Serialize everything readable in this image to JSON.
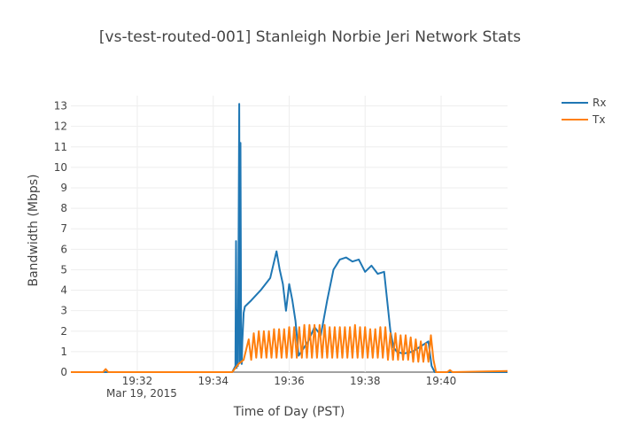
{
  "chart_data": {
    "type": "line",
    "title": "[vs-test-routed-001] Stanleigh Norbie Jeri Network Stats",
    "xlabel": "Time of Day (PST)",
    "ylabel": "Bandwidth (Mbps)",
    "date_label": "Mar 19, 2015",
    "xlim": [
      "19:30:15",
      "19:41:45"
    ],
    "ylim": [
      0,
      13.5
    ],
    "xticks": [
      "19:32",
      "19:34",
      "19:36",
      "19:38",
      "19:40"
    ],
    "yticks": [
      0,
      1,
      2,
      3,
      4,
      5,
      6,
      7,
      8,
      9,
      10,
      11,
      12,
      13
    ],
    "grid": true,
    "legend": "top-right",
    "series": [
      {
        "name": "Rx",
        "color": "#1f77b4",
        "x": [
          "19:30:15",
          "19:34:30",
          "19:34:35",
          "19:34:36",
          "19:34:37",
          "19:34:38",
          "19:34:39",
          "19:34:40",
          "19:34:41",
          "19:34:42",
          "19:34:43",
          "19:34:44",
          "19:34:45",
          "19:34:46",
          "19:34:48",
          "19:34:50",
          "19:35:00",
          "19:35:15",
          "19:35:30",
          "19:35:40",
          "19:35:45",
          "19:35:50",
          "19:35:55",
          "19:36:00",
          "19:36:05",
          "19:36:10",
          "19:36:15",
          "19:36:30",
          "19:36:40",
          "19:36:50",
          "19:37:00",
          "19:37:10",
          "19:37:20",
          "19:37:30",
          "19:37:40",
          "19:37:50",
          "19:38:00",
          "19:38:10",
          "19:38:20",
          "19:38:30",
          "19:38:40",
          "19:38:45",
          "19:38:50",
          "19:39:00",
          "19:39:15",
          "19:39:30",
          "19:39:40",
          "19:39:45",
          "19:39:50",
          "19:41:45"
        ],
        "values": [
          0,
          0,
          0.3,
          6.4,
          0.2,
          3.0,
          0.3,
          5.8,
          13.1,
          0.5,
          11.2,
          2.0,
          0.4,
          1.5,
          2.9,
          3.2,
          3.5,
          4.0,
          4.6,
          5.9,
          5.0,
          4.3,
          3.0,
          4.3,
          3.5,
          2.5,
          0.8,
          1.5,
          2.2,
          1.8,
          3.5,
          5.0,
          5.5,
          5.6,
          5.4,
          5.5,
          4.9,
          5.2,
          4.8,
          4.9,
          2.0,
          1.2,
          1.0,
          0.9,
          1.0,
          1.3,
          1.5,
          0.3,
          0,
          0
        ]
      },
      {
        "name": "Tx",
        "color": "#ff7f0e",
        "x": [
          "19:30:15",
          "19:31:06",
          "19:31:10",
          "19:31:14",
          "19:34:30",
          "19:34:40",
          "19:34:48",
          "19:34:56",
          "19:35:00",
          "19:35:04",
          "19:35:08",
          "19:35:12",
          "19:35:16",
          "19:35:20",
          "19:35:24",
          "19:35:28",
          "19:35:32",
          "19:35:36",
          "19:35:40",
          "19:35:44",
          "19:35:48",
          "19:35:52",
          "19:35:56",
          "19:36:00",
          "19:36:04",
          "19:36:08",
          "19:36:12",
          "19:36:16",
          "19:36:20",
          "19:36:24",
          "19:36:28",
          "19:36:32",
          "19:36:36",
          "19:36:40",
          "19:36:44",
          "19:36:48",
          "19:36:52",
          "19:36:56",
          "19:37:00",
          "19:37:04",
          "19:37:08",
          "19:37:12",
          "19:37:16",
          "19:37:20",
          "19:37:24",
          "19:37:28",
          "19:37:32",
          "19:37:36",
          "19:37:40",
          "19:37:44",
          "19:37:48",
          "19:37:52",
          "19:37:56",
          "19:38:00",
          "19:38:04",
          "19:38:08",
          "19:38:12",
          "19:38:16",
          "19:38:20",
          "19:38:24",
          "19:38:28",
          "19:38:32",
          "19:38:36",
          "19:38:40",
          "19:38:44",
          "19:38:48",
          "19:38:52",
          "19:38:56",
          "19:39:00",
          "19:39:04",
          "19:39:08",
          "19:39:12",
          "19:39:16",
          "19:39:20",
          "19:39:24",
          "19:39:28",
          "19:39:32",
          "19:39:36",
          "19:39:40",
          "19:39:44",
          "19:39:48",
          "19:39:52",
          "19:39:56",
          "19:40:10",
          "19:40:14",
          "19:40:18",
          "19:41:45"
        ],
        "values": [
          0,
          0,
          0.15,
          0,
          0,
          0.4,
          0.6,
          1.6,
          0.6,
          1.9,
          0.7,
          2.0,
          0.7,
          2.0,
          0.7,
          2.0,
          0.7,
          2.1,
          0.7,
          2.1,
          0.7,
          2.1,
          0.7,
          2.2,
          0.7,
          2.2,
          0.7,
          2.2,
          0.7,
          2.3,
          0.7,
          2.3,
          0.7,
          2.3,
          0.7,
          2.3,
          0.7,
          2.3,
          0.7,
          2.2,
          0.7,
          2.2,
          0.7,
          2.2,
          0.7,
          2.2,
          0.7,
          2.2,
          0.7,
          2.3,
          0.7,
          2.2,
          0.7,
          2.2,
          0.7,
          2.1,
          0.7,
          2.1,
          0.7,
          2.2,
          0.7,
          2.2,
          0.6,
          1.9,
          0.6,
          1.9,
          0.6,
          1.8,
          0.6,
          1.8,
          0.6,
          1.7,
          0.5,
          1.6,
          0.5,
          1.5,
          0.5,
          1.4,
          0.5,
          1.8,
          0.6,
          0,
          0,
          0,
          0.1,
          0,
          0.05
        ]
      }
    ]
  }
}
